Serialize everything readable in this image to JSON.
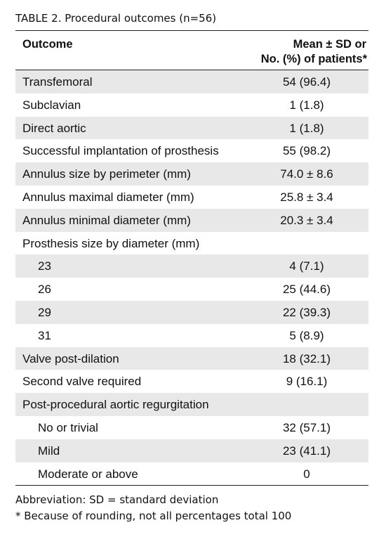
{
  "title": "TABLE 2.  Procedural outcomes (n=56)",
  "header": [
    "Outcome",
    [
      "Mean ± SD or",
      "No. (%) of patients*"
    ]
  ],
  "rows": [
    [
      "Transfemoral",
      "54 (96.4)"
    ],
    [
      "Subclavian",
      "1 (1.8)"
    ],
    [
      "Direct aortic",
      "1 (1.8)"
    ],
    [
      "Successful implantation of prosthesis",
      "55 (98.2)"
    ],
    [
      "Annulus size by perimeter (mm)",
      "74.0 ± 8.6"
    ],
    [
      "Annulus maximal diameter (mm)",
      "25.8 ± 3.4"
    ],
    [
      "Annulus minimal diameter (mm)",
      "20.3 ± 3.4"
    ],
    [
      "Prosthesis size by diameter (mm)"
    ],
    [
      "23",
      "4 (7.1)"
    ],
    [
      "26",
      "25 (44.6)"
    ],
    [
      "29",
      "22 (39.3)"
    ],
    [
      "31",
      "5 (8.9)"
    ],
    [
      "Valve post-dilation",
      "18 (32.1)"
    ],
    [
      "Second valve required",
      "9 (16.1)"
    ],
    [
      "Post-procedural aortic regurgitation"
    ],
    [
      "No or trivial",
      "32 (57.1)"
    ],
    [
      "Mild",
      "23 (41.1)"
    ],
    [
      "Moderate or above",
      "0"
    ]
  ],
  "footnotes": [
    "Abbreviation: SD = standard deviation",
    "*   Because of rounding, not all percentages total 100"
  ]
}
